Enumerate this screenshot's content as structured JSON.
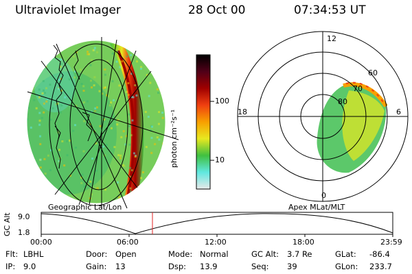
{
  "header": {
    "instrument": "Ultraviolet Imager",
    "date": "28 Oct 00",
    "time": "07:34:53 UT"
  },
  "left_panel": {
    "caption": "Geographic Lat/Lon"
  },
  "right_panel": {
    "caption": "Apex MLat/MLT",
    "mlt_labels": {
      "top": "12",
      "left": "18",
      "right": "6",
      "bottom": "0"
    },
    "mlat_labels": [
      "60",
      "70",
      "80"
    ]
  },
  "colorbar": {
    "unit_label": "photon cm⁻²s⁻¹",
    "tick_labels": [
      "100",
      "10"
    ],
    "scale": "log",
    "colors": [
      "#e8e8e8",
      "#60e8e0",
      "#40c040",
      "#e8e820",
      "#f8a000",
      "#f04010",
      "#a00000",
      "#500018",
      "#000000"
    ]
  },
  "altitude_plot": {
    "ylabel": "GC Alt",
    "y_ticks": [
      "9.0",
      "1.8"
    ],
    "x_ticks": [
      "00:00",
      "06:00",
      "12:00",
      "18:00",
      "23:59"
    ],
    "current_time_marker": "07:34"
  },
  "info": {
    "row1": [
      {
        "label": "Flt:",
        "value": "LBHL"
      },
      {
        "label": "Door:",
        "value": "Open"
      },
      {
        "label": "Mode:",
        "value": "Normal"
      },
      {
        "label": "GC Alt:",
        "value": "3.7 Re"
      },
      {
        "label": "GLat:",
        "value": "-86.4"
      }
    ],
    "row2": [
      {
        "label": "IP:",
        "value": "9.0"
      },
      {
        "label": "Gain:",
        "value": "13"
      },
      {
        "label": "Dsp:",
        "value": "13.9"
      },
      {
        "label": "Seq:",
        "value": "39"
      },
      {
        "label": "GLon:",
        "value": "233.7"
      }
    ]
  }
}
